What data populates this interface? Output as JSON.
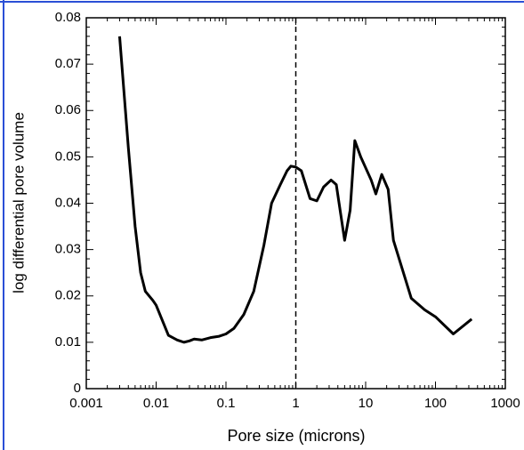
{
  "chart_data": {
    "type": "line",
    "x_label": "Pore size (microns)",
    "y_label": "log differential pore volume",
    "x": [
      0.003,
      0.004,
      0.005,
      0.006,
      0.007,
      0.009,
      0.01,
      0.015,
      0.02,
      0.025,
      0.03,
      0.035,
      0.045,
      0.06,
      0.08,
      0.1,
      0.13,
      0.18,
      0.25,
      0.35,
      0.45,
      0.6,
      0.75,
      0.85,
      1.0,
      1.2,
      1.6,
      2.0,
      2.5,
      3.2,
      3.8,
      5.0,
      6.0,
      7.0,
      8.5,
      12,
      14,
      17,
      21,
      25,
      45,
      70,
      100,
      180,
      330
    ],
    "values": [
      0.076,
      0.052,
      0.035,
      0.025,
      0.021,
      0.019,
      0.018,
      0.0115,
      0.0105,
      0.01,
      0.0103,
      0.0107,
      0.0105,
      0.011,
      0.0113,
      0.0118,
      0.013,
      0.016,
      0.021,
      0.031,
      0.04,
      0.044,
      0.047,
      0.048,
      0.0478,
      0.047,
      0.041,
      0.0405,
      0.0435,
      0.045,
      0.044,
      0.032,
      0.0385,
      0.0535,
      0.05,
      0.045,
      0.042,
      0.0462,
      0.043,
      0.032,
      0.0195,
      0.017,
      0.0155,
      0.0118,
      0.015
    ],
    "color": "#000000",
    "xscale": "log",
    "xlim": [
      0.001,
      1000
    ],
    "xticks": [
      0.001,
      0.01,
      0.1,
      1,
      10,
      100,
      1000
    ],
    "ylim": [
      0,
      0.08
    ],
    "yticks": [
      0,
      0.01,
      0.02,
      0.03,
      0.04,
      0.05,
      0.06,
      0.07,
      0.08
    ],
    "vline": 1
  }
}
